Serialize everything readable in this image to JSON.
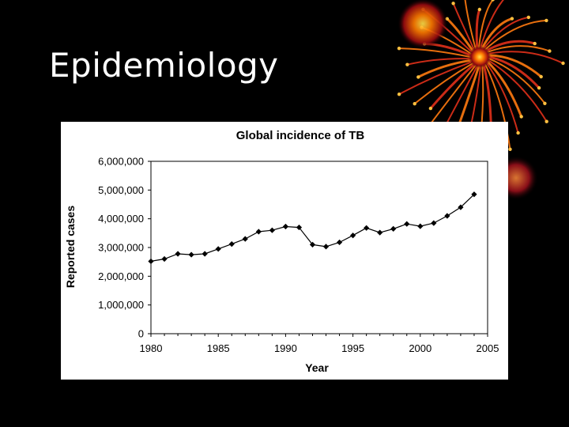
{
  "slide": {
    "title": "Epidemiology"
  },
  "decoration": {
    "name": "orange-firework-ornament",
    "colors": [
      "#ff6a00",
      "#ffd000",
      "#c0101a"
    ]
  },
  "chart_data": {
    "type": "line",
    "title": "Global incidence of TB",
    "xlabel": "Year",
    "ylabel": "Reported cases",
    "xlim": [
      1980,
      2005
    ],
    "ylim": [
      0,
      6000000
    ],
    "x_ticks": [
      1980,
      1985,
      1990,
      1995,
      2000,
      2005
    ],
    "x_tick_labels": [
      "1980",
      "1985",
      "1990",
      "1995",
      "2000",
      "2005"
    ],
    "y_ticks": [
      0,
      1000000,
      2000000,
      3000000,
      4000000,
      5000000,
      6000000
    ],
    "y_tick_labels": [
      "0",
      "1,000,000",
      "2,000,000",
      "3,000,000",
      "4,000,000",
      "5,000,000",
      "6,000,000"
    ],
    "grid": false,
    "series": [
      {
        "name": "Reported cases",
        "marker": "diamond",
        "color": "#000000",
        "x": [
          1980,
          1981,
          1982,
          1983,
          1984,
          1985,
          1986,
          1987,
          1988,
          1989,
          1990,
          1991,
          1992,
          1993,
          1994,
          1995,
          1996,
          1997,
          1998,
          1999,
          2000,
          2001,
          2002,
          2003,
          2004
        ],
        "y": [
          2520000,
          2600000,
          2780000,
          2750000,
          2780000,
          2950000,
          3120000,
          3300000,
          3550000,
          3600000,
          3730000,
          3700000,
          3100000,
          3030000,
          3180000,
          3420000,
          3680000,
          3520000,
          3650000,
          3820000,
          3740000,
          3850000,
          4100000,
          4400000,
          4850000
        ]
      }
    ]
  }
}
